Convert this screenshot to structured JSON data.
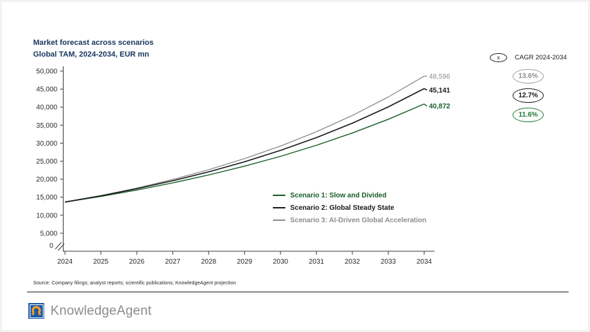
{
  "header": {
    "title": "Market forecast across scenarios",
    "subtitle": "Global TAM, 2024-2034, EUR mn",
    "title_color": "#17365d"
  },
  "cagr_legend": {
    "symbol": "x",
    "label": "CAGR 2024-2034",
    "badges": [
      {
        "value": "13.6%",
        "color": "#8f8f8f",
        "border": "#9e9e9e"
      },
      {
        "value": "12.7%",
        "color": "#1a1a1a",
        "border": "#1a1a1a"
      },
      {
        "value": "11.6%",
        "color": "#1f7a33",
        "border": "#1f7a33"
      }
    ]
  },
  "chart_data": {
    "type": "line",
    "title": "Market forecast across scenarios",
    "subtitle": "Global TAM, 2024-2034, EUR mn",
    "unit": "EUR mn",
    "x": [
      2024,
      2025,
      2026,
      2027,
      2028,
      2029,
      2030,
      2031,
      2032,
      2033,
      2034
    ],
    "ylim": [
      0,
      50000
    ],
    "ytick_step": 5000,
    "axis_break_at_zero": true,
    "grid": false,
    "legend_position": "inside-middle-right",
    "series": [
      {
        "name": "Scenario 1: Slow and Divided",
        "color": "#175e27",
        "cagr": "11.6%",
        "end_label": "40,872",
        "values": [
          13640,
          15220,
          16990,
          18960,
          21160,
          23620,
          26350,
          29410,
          32820,
          36630,
          40872
        ]
      },
      {
        "name": "Scenario 2: Global Steady State",
        "color": "#1a1a1a",
        "cagr": "12.7%",
        "end_label": "45,141",
        "values": [
          13660,
          15390,
          17350,
          19550,
          22030,
          24830,
          27990,
          31540,
          35540,
          40060,
          45141
        ]
      },
      {
        "name": "Scenario 3: AI-Driven Global Acceleration",
        "color": "#8e8e8e",
        "cagr": "13.6%",
        "end_label": "48,596",
        "values": [
          13590,
          15430,
          17530,
          19920,
          22630,
          25700,
          29200,
          33170,
          37680,
          42810,
          48596
        ]
      }
    ]
  },
  "footer": {
    "source": "Source: Company filings; analyst reports; scientific publications; KnowledgeAgent projection",
    "brand": "KnowledgeAgent"
  }
}
